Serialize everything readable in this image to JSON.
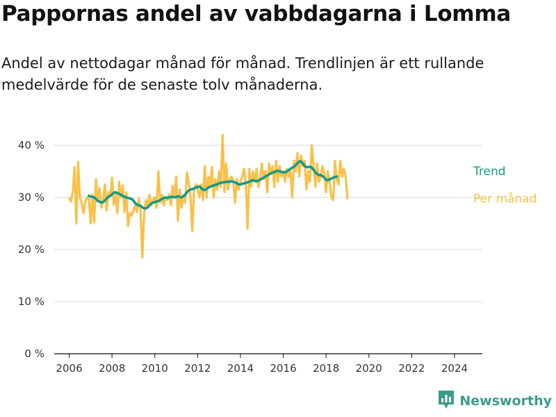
{
  "title": "Pappornas andel av vabbdagarna i Lomma",
  "subtitle": "Andel av nettodagar månad för månad. Trendlinjen är ett rullande medelvärde för de senaste tolv månaderna.",
  "brand": {
    "name": "Newsworthy",
    "icon": "bar-chart-logo-icon",
    "color": "#3a9c8a"
  },
  "colors": {
    "monthly": "#f9c04a",
    "trend": "#14998a",
    "axis": "#333333",
    "grid": "#d9d9d9"
  },
  "chart_data": {
    "type": "line",
    "x_unit": "year (decimal, monthly)",
    "xlim": [
      2005.3,
      2025.3
    ],
    "ylim": [
      0,
      40
    ],
    "y_ticks": [
      0,
      10,
      20,
      30,
      40
    ],
    "y_tick_labels": [
      "0 %",
      "10 %",
      "20 %",
      "30 %",
      "40 %"
    ],
    "x_ticks": [
      2006,
      2008,
      2010,
      2012,
      2014,
      2016,
      2018,
      2020,
      2022,
      2024
    ],
    "x_tick_labels": [
      "2006",
      "2008",
      "2010",
      "2012",
      "2014",
      "2016",
      "2018",
      "2020",
      "2022",
      "2024"
    ],
    "grid": "horizontal",
    "legend": "direct labels at line ends",
    "series": [
      {
        "name": "Per månad",
        "start": 2006.0,
        "step": 0.0833333,
        "values": [
          29.8,
          29.2,
          31.0,
          35.8,
          25.0,
          36.8,
          29.9,
          29.0,
          27.0,
          29.2,
          30.0,
          29.8,
          25.0,
          30.5,
          25.2,
          33.5,
          29.2,
          31.8,
          28.0,
          29.5,
          32.5,
          27.5,
          31.0,
          30.2,
          33.8,
          28.6,
          30.5,
          27.0,
          33.0,
          30.0,
          32.3,
          27.2,
          31.0,
          24.5,
          27.0,
          26.5,
          27.5,
          28.5,
          27.2,
          29.8,
          27.5,
          18.5,
          26.8,
          29.5,
          28.2,
          30.5,
          28.5,
          29.5,
          30.0,
          28.0,
          35.0,
          29.0,
          30.5,
          28.5,
          30.0,
          29.5,
          30.5,
          28.5,
          32.2,
          30.0,
          34.0,
          25.5,
          31.5,
          28.0,
          30.5,
          29.0,
          34.8,
          33.0,
          30.0,
          23.5,
          31.5,
          32.5,
          31.5,
          30.0,
          32.5,
          29.5,
          36.0,
          30.0,
          34.0,
          32.0,
          35.8,
          30.0,
          33.5,
          31.5,
          35.0,
          32.0,
          42.0,
          31.0,
          36.5,
          31.5,
          33.5,
          34.0,
          33.0,
          29.0,
          33.5,
          31.5,
          33.0,
          34.0,
          35.5,
          32.5,
          24.0,
          35.5,
          32.0,
          35.0,
          33.0,
          35.5,
          32.0,
          33.5,
          36.5,
          33.5,
          35.0,
          31.0,
          36.5,
          34.5,
          36.0,
          32.0,
          37.0,
          33.0,
          36.0,
          34.0,
          35.0,
          33.0,
          35.5,
          34.0,
          35.0,
          30.0,
          37.0,
          35.0,
          38.5,
          34.0,
          38.0,
          36.0,
          37.0,
          31.5,
          35.0,
          33.0,
          40.0,
          36.0,
          32.0,
          36.5,
          33.0,
          34.0,
          36.0,
          34.5,
          31.0,
          35.0,
          33.0,
          30.0,
          29.5,
          37.0,
          33.5,
          32.5,
          37.0,
          34.0,
          35.5,
          34.0,
          29.8
        ]
      },
      {
        "name": "Trend",
        "start": 2006.9167,
        "step": 0.0833333,
        "values": [
          30.3,
          30.2,
          30.1,
          30.0,
          29.7,
          29.3,
          29.2,
          29.0,
          29.1,
          29.4,
          29.8,
          30.1,
          30.3,
          30.6,
          30.9,
          31.0,
          30.8,
          30.7,
          30.5,
          30.3,
          30.1,
          30.0,
          29.9,
          29.8,
          29.7,
          29.4,
          28.9,
          28.6,
          28.5,
          28.4,
          28.1,
          27.9,
          27.9,
          28.1,
          28.5,
          28.8,
          29.0,
          29.1,
          29.2,
          29.3,
          29.5,
          29.7,
          29.9,
          30.0,
          29.9,
          30.0,
          30.1,
          30.1,
          30.0,
          30.1,
          30.2,
          30.1,
          30.0,
          30.2,
          30.5,
          31.0,
          31.3,
          31.5,
          31.6,
          31.7,
          31.9,
          32.0,
          32.1,
          31.8,
          31.5,
          31.4,
          31.6,
          31.9,
          32.0,
          32.2,
          32.3,
          32.4,
          32.5,
          32.7,
          32.8,
          32.9,
          32.9,
          33.0,
          33.0,
          33.0,
          33.1,
          33.0,
          32.9,
          32.7,
          32.5,
          32.5,
          32.6,
          32.7,
          32.8,
          32.9,
          33.0,
          33.2,
          33.3,
          33.2,
          33.1,
          33.2,
          33.4,
          33.6,
          33.8,
          34.0,
          34.2,
          34.4,
          34.6,
          34.7,
          34.9,
          35.0,
          35.1,
          35.0,
          34.9,
          34.8,
          34.8,
          35.0,
          35.2,
          35.5,
          35.7,
          35.9,
          36.2,
          36.6,
          36.9,
          36.9,
          36.5,
          36.0,
          35.8,
          35.8,
          35.9,
          35.7,
          35.3,
          34.8,
          34.5,
          34.3,
          34.3,
          34.1,
          33.8,
          33.4,
          33.3,
          33.5,
          33.6,
          33.8,
          33.9,
          34.0
        ]
      }
    ]
  }
}
